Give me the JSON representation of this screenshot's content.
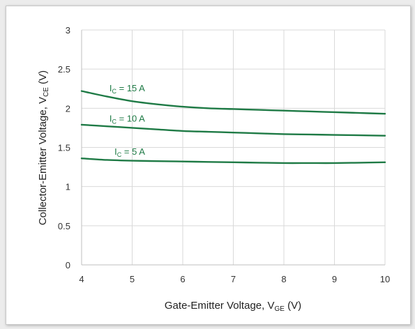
{
  "chart_data": {
    "type": "line",
    "title": "",
    "xlabel": {
      "main": "Gate-Emitter Voltage, V",
      "sub": "GE",
      "unit": " (V)"
    },
    "ylabel": {
      "main": "Collector-Emitter Voltage, V",
      "sub": "CE",
      "unit": " (V)"
    },
    "xlim": [
      4,
      10
    ],
    "ylim": [
      0,
      3
    ],
    "x_ticks": [
      4,
      5,
      6,
      7,
      8,
      9,
      10
    ],
    "y_ticks": [
      0,
      0.5,
      1,
      1.5,
      2,
      2.5,
      3
    ],
    "grid": true,
    "line_color": "#1e7a45",
    "series": [
      {
        "label_main": "I",
        "label_sub": "C",
        "label_rest": " = 15 A",
        "x": [
          4,
          4.5,
          5,
          5.5,
          6,
          6.5,
          7,
          7.5,
          8,
          8.5,
          9,
          9.5,
          10
        ],
        "y": [
          2.22,
          2.15,
          2.09,
          2.05,
          2.02,
          2.0,
          1.99,
          1.98,
          1.97,
          1.96,
          1.95,
          1.94,
          1.93
        ]
      },
      {
        "label_main": "I",
        "label_sub": "C",
        "label_rest": " = 10 A",
        "x": [
          4,
          4.5,
          5,
          5.5,
          6,
          6.5,
          7,
          7.5,
          8,
          8.5,
          9,
          9.5,
          10
        ],
        "y": [
          1.79,
          1.77,
          1.75,
          1.73,
          1.71,
          1.7,
          1.69,
          1.68,
          1.67,
          1.665,
          1.66,
          1.655,
          1.65
        ]
      },
      {
        "label_main": "I",
        "label_sub": "C",
        "label_rest": " = 5 A",
        "x": [
          4,
          4.5,
          5,
          5.5,
          6,
          6.5,
          7,
          7.5,
          8,
          8.5,
          9,
          9.5,
          10
        ],
        "y": [
          1.36,
          1.34,
          1.33,
          1.325,
          1.32,
          1.315,
          1.31,
          1.305,
          1.3,
          1.3,
          1.3,
          1.305,
          1.31
        ]
      }
    ]
  }
}
